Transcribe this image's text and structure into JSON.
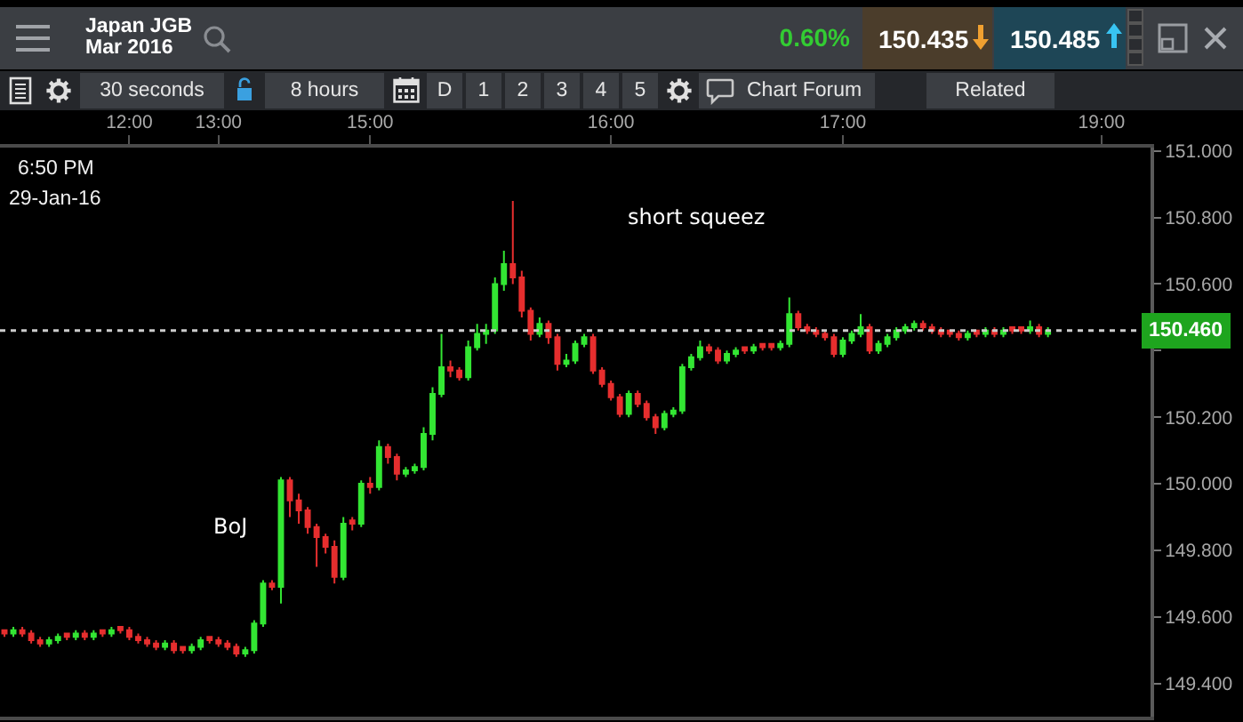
{
  "chart_data": {
    "type": "candlestick",
    "title": "Japan JGB Mar 2016",
    "categories": [
      null,
      null,
      null,
      null,
      null,
      null,
      null,
      null,
      null,
      null,
      null,
      null,
      null,
      null,
      "12:00",
      null,
      null,
      null,
      null,
      null,
      null,
      null,
      null,
      null,
      "13:00",
      null,
      null,
      null,
      null,
      null,
      null,
      null,
      null,
      null,
      null,
      null,
      null,
      null,
      null,
      null,
      null,
      "15:00",
      null,
      null,
      null,
      null,
      null,
      null,
      null,
      null,
      null,
      null,
      null,
      null,
      null,
      null,
      null,
      null,
      null,
      null,
      null,
      null,
      null,
      null,
      null,
      null,
      null,
      null,
      "16:00",
      null,
      null,
      null,
      null,
      null,
      null,
      null,
      null,
      null,
      null,
      null,
      null,
      null,
      null,
      null,
      null,
      null,
      null,
      null,
      null,
      null,
      null,
      null,
      null,
      null,
      "17:00",
      null,
      null,
      null,
      null,
      null,
      null,
      null,
      null,
      null,
      null,
      null,
      null,
      null,
      null,
      null,
      null,
      null,
      null,
      null,
      null,
      null,
      null,
      null,
      null,
      null,
      null,
      null,
      null,
      "19:00",
      null,
      null,
      null,
      null,
      null
    ],
    "ohlc": [
      [
        149.56,
        149.56,
        149.54,
        149.55
      ],
      [
        149.55,
        149.57,
        149.54,
        149.56
      ],
      [
        149.56,
        149.57,
        149.54,
        149.55
      ],
      [
        149.55,
        149.56,
        149.52,
        149.53
      ],
      [
        149.53,
        149.54,
        149.51,
        149.52
      ],
      [
        149.52,
        149.54,
        149.51,
        149.53
      ],
      [
        149.53,
        149.55,
        149.52,
        149.54
      ],
      [
        149.55,
        149.55,
        149.53,
        149.54
      ],
      [
        149.54,
        149.56,
        149.53,
        149.55
      ],
      [
        149.55,
        149.56,
        149.53,
        149.54
      ],
      [
        149.54,
        149.56,
        149.53,
        149.55
      ],
      [
        149.56,
        149.56,
        149.54,
        149.55
      ],
      [
        149.55,
        149.57,
        149.54,
        149.56
      ],
      [
        149.57,
        149.57,
        149.55,
        149.56
      ],
      [
        149.56,
        149.57,
        149.53,
        149.54
      ],
      [
        149.54,
        149.55,
        149.52,
        149.53
      ],
      [
        149.53,
        149.54,
        149.51,
        149.52
      ],
      [
        149.52,
        149.53,
        149.5,
        149.51
      ],
      [
        149.51,
        149.53,
        149.5,
        149.52
      ],
      [
        149.52,
        149.53,
        149.49,
        149.5
      ],
      [
        149.51,
        149.51,
        149.49,
        149.5
      ],
      [
        149.5,
        149.52,
        149.49,
        149.51
      ],
      [
        149.51,
        149.54,
        149.5,
        149.53
      ],
      [
        149.54,
        149.54,
        149.52,
        149.53
      ],
      [
        149.53,
        149.54,
        149.51,
        149.52
      ],
      [
        149.52,
        149.53,
        149.5,
        149.51
      ],
      [
        149.51,
        149.52,
        149.48,
        149.49
      ],
      [
        149.49,
        149.51,
        149.48,
        149.5
      ],
      [
        149.5,
        149.59,
        149.49,
        149.58
      ],
      [
        149.58,
        149.71,
        149.57,
        149.7
      ],
      [
        149.7,
        149.71,
        149.68,
        149.69
      ],
      [
        149.69,
        150.02,
        149.64,
        150.01
      ],
      [
        150.01,
        150.02,
        149.9,
        149.95
      ],
      [
        149.95,
        149.97,
        149.88,
        149.92
      ],
      [
        149.92,
        149.93,
        149.85,
        149.87
      ],
      [
        149.87,
        149.88,
        149.75,
        149.84
      ],
      [
        149.84,
        149.85,
        149.79,
        149.81
      ],
      [
        149.81,
        149.83,
        149.7,
        149.72
      ],
      [
        149.72,
        149.9,
        149.71,
        149.88
      ],
      [
        149.89,
        149.9,
        149.86,
        149.88
      ],
      [
        149.88,
        150.01,
        149.87,
        150.0
      ],
      [
        150.0,
        150.02,
        149.97,
        149.99
      ],
      [
        149.99,
        150.13,
        149.98,
        150.11
      ],
      [
        150.11,
        150.12,
        150.06,
        150.08
      ],
      [
        150.08,
        150.09,
        150.01,
        150.03
      ],
      [
        150.03,
        150.05,
        150.02,
        150.04
      ],
      [
        150.04,
        150.06,
        150.03,
        150.05
      ],
      [
        150.05,
        150.17,
        150.04,
        150.15
      ],
      [
        150.15,
        150.29,
        150.13,
        150.27
      ],
      [
        150.27,
        150.45,
        150.26,
        150.35
      ],
      [
        150.35,
        150.37,
        150.32,
        150.34
      ],
      [
        150.34,
        150.35,
        150.31,
        150.32
      ],
      [
        150.32,
        150.43,
        150.31,
        150.41
      ],
      [
        150.41,
        150.48,
        150.4,
        150.45
      ],
      [
        150.45,
        150.48,
        150.42,
        150.46
      ],
      [
        150.46,
        150.62,
        150.45,
        150.6
      ],
      [
        150.6,
        150.7,
        150.58,
        150.66
      ],
      [
        150.66,
        150.85,
        150.6,
        150.62
      ],
      [
        150.62,
        150.64,
        150.5,
        150.52
      ],
      [
        150.52,
        150.53,
        150.43,
        150.45
      ],
      [
        150.45,
        150.5,
        150.44,
        150.48
      ],
      [
        150.48,
        150.49,
        150.42,
        150.44
      ],
      [
        150.44,
        150.45,
        150.34,
        150.36
      ],
      [
        150.36,
        150.39,
        150.35,
        150.37
      ],
      [
        150.37,
        150.43,
        150.36,
        150.42
      ],
      [
        150.42,
        150.45,
        150.41,
        150.44
      ],
      [
        150.44,
        150.45,
        150.33,
        150.34
      ],
      [
        150.34,
        150.35,
        150.29,
        150.3
      ],
      [
        150.3,
        150.31,
        150.25,
        150.26
      ],
      [
        150.26,
        150.27,
        150.2,
        150.21
      ],
      [
        150.21,
        150.28,
        150.2,
        150.27
      ],
      [
        150.27,
        150.28,
        150.23,
        150.24
      ],
      [
        150.24,
        150.25,
        150.19,
        150.2
      ],
      [
        150.2,
        150.21,
        150.15,
        150.17
      ],
      [
        150.17,
        150.22,
        150.16,
        150.21
      ],
      [
        150.21,
        150.23,
        150.2,
        150.22
      ],
      [
        150.22,
        150.36,
        150.21,
        150.35
      ],
      [
        150.35,
        150.39,
        150.34,
        150.38
      ],
      [
        150.38,
        150.43,
        150.37,
        150.41
      ],
      [
        150.41,
        150.42,
        150.39,
        150.4
      ],
      [
        150.4,
        150.41,
        150.36,
        150.37
      ],
      [
        150.37,
        150.4,
        150.36,
        150.39
      ],
      [
        150.39,
        150.41,
        150.38,
        150.4
      ],
      [
        150.41,
        150.41,
        150.39,
        150.4
      ],
      [
        150.4,
        150.42,
        150.39,
        150.41
      ],
      [
        150.42,
        150.42,
        150.4,
        150.41
      ],
      [
        150.42,
        150.42,
        150.4,
        150.41
      ],
      [
        150.41,
        150.43,
        150.4,
        150.42
      ],
      [
        150.42,
        150.56,
        150.41,
        150.51
      ],
      [
        150.51,
        150.52,
        150.46,
        150.47
      ],
      [
        150.47,
        150.48,
        150.45,
        150.46
      ],
      [
        150.46,
        150.47,
        150.44,
        150.45
      ],
      [
        150.45,
        150.46,
        150.43,
        150.44
      ],
      [
        150.44,
        150.45,
        150.38,
        150.39
      ],
      [
        150.39,
        150.44,
        150.38,
        150.43
      ],
      [
        150.43,
        150.46,
        150.42,
        150.45
      ],
      [
        150.45,
        150.51,
        150.44,
        150.47
      ],
      [
        150.47,
        150.48,
        150.39,
        150.4
      ],
      [
        150.4,
        150.43,
        150.39,
        150.42
      ],
      [
        150.42,
        150.45,
        150.41,
        150.44
      ],
      [
        150.44,
        150.47,
        150.43,
        150.46
      ],
      [
        150.46,
        150.48,
        150.45,
        150.47
      ],
      [
        150.47,
        150.49,
        150.46,
        150.48
      ],
      [
        150.48,
        150.49,
        150.46,
        150.47
      ],
      [
        150.47,
        150.48,
        150.45,
        150.46
      ],
      [
        150.46,
        150.47,
        150.44,
        150.45
      ],
      [
        150.46,
        150.46,
        150.44,
        150.45
      ],
      [
        150.45,
        150.46,
        150.43,
        150.44
      ],
      [
        150.44,
        150.46,
        150.43,
        150.45
      ],
      [
        150.46,
        150.46,
        150.44,
        150.45
      ],
      [
        150.45,
        150.47,
        150.44,
        150.46
      ],
      [
        150.46,
        150.47,
        150.44,
        150.45
      ],
      [
        150.45,
        150.47,
        150.44,
        150.46
      ],
      [
        150.47,
        150.47,
        150.45,
        150.46
      ],
      [
        150.47,
        150.47,
        150.45,
        150.46
      ],
      [
        150.46,
        150.49,
        150.45,
        150.47
      ],
      [
        150.47,
        150.48,
        150.44,
        150.45
      ],
      [
        150.45,
        150.47,
        150.44,
        150.46
      ],
      null,
      null,
      null,
      null,
      null,
      null,
      null,
      null,
      null,
      null,
      null
    ],
    "colors": [
      "#e62e2e",
      "#33e633",
      "#e62e2e",
      "#e62e2e",
      "#e62e2e",
      "#33e633",
      "#33e633",
      "#e62e2e",
      "#33e633",
      "#e62e2e",
      "#33e633",
      "#e62e2e",
      "#33e633",
      "#e62e2e",
      "#e62e2e",
      "#e62e2e",
      "#e62e2e",
      "#e62e2e",
      "#33e633",
      "#e62e2e",
      "#e62e2e",
      "#33e633",
      "#33e633",
      "#e62e2e",
      "#e62e2e",
      "#e62e2e",
      "#e62e2e",
      "#33e633",
      "#33e633",
      "#33e633",
      "#e62e2e",
      "#33e633",
      "#e62e2e",
      "#e62e2e",
      "#e62e2e",
      "#e62e2e",
      "#e62e2e",
      "#e62e2e",
      "#33e633",
      "#e62e2e",
      "#33e633",
      "#e62e2e",
      "#33e633",
      "#e62e2e",
      "#e62e2e",
      "#33e633",
      "#33e633",
      "#33e633",
      "#33e633",
      "#33e633",
      "#e62e2e",
      "#e62e2e",
      "#33e633",
      "#33e633",
      "#33e633",
      "#33e633",
      "#33e633",
      "#e62e2e",
      "#e62e2e",
      "#e62e2e",
      "#33e633",
      "#e62e2e",
      "#e62e2e",
      "#33e633",
      "#33e633",
      "#33e633",
      "#e62e2e",
      "#e62e2e",
      "#e62e2e",
      "#e62e2e",
      "#33e633",
      "#e62e2e",
      "#e62e2e",
      "#e62e2e",
      "#33e633",
      "#33e633",
      "#33e633",
      "#33e633",
      "#33e633",
      "#e62e2e",
      "#e62e2e",
      "#33e633",
      "#33e633",
      "#e62e2e",
      "#33e633",
      "#e62e2e",
      "#e62e2e",
      "#33e633",
      "#33e633",
      "#e62e2e",
      "#e62e2e",
      "#e62e2e",
      "#e62e2e",
      "#e62e2e",
      "#33e633",
      "#33e633",
      "#33e633",
      "#e62e2e",
      "#33e633",
      "#33e633",
      "#33e633",
      "#33e633",
      "#33e633",
      "#e62e2e",
      "#e62e2e",
      "#e62e2e",
      "#e62e2e",
      "#e62e2e",
      "#33e633",
      "#e62e2e",
      "#33e633",
      "#e62e2e",
      "#33e633",
      "#e62e2e",
      "#e62e2e",
      "#33e633",
      "#e62e2e",
      "#33e633",
      null,
      null,
      null,
      null,
      null,
      null,
      null,
      null,
      null,
      null,
      null
    ],
    "ylim": [
      149.3,
      151.01
    ],
    "yticks": [
      {
        "value": 151,
        "label": "151.000"
      },
      {
        "value": 150.8,
        "label": "150.800"
      },
      {
        "value": 150.6,
        "label": "150.600"
      },
      {
        "value": 150.4,
        "label": null
      },
      {
        "value": 150.2,
        "label": "150.200"
      },
      {
        "value": 150,
        "label": "150.000"
      },
      {
        "value": 149.8,
        "label": "149.800"
      },
      {
        "value": 149.6,
        "label": "149.600"
      },
      {
        "value": 149.4,
        "label": "149.400"
      }
    ],
    "ref_lines": [
      {
        "axis": "y",
        "value": 150.46,
        "label": "150.460",
        "color": "#cccccc",
        "line_style": "dotted"
      }
    ],
    "annotations": [
      "0.60%",
      "150.435",
      "150.485",
      "30 seconds",
      "8 hours",
      "D",
      "1",
      "2",
      "3",
      "4",
      "5",
      "Chart Forum",
      "Related",
      "6:50 PM",
      "29-Jan-16",
      "BoJ",
      "short squeez"
    ]
  }
}
